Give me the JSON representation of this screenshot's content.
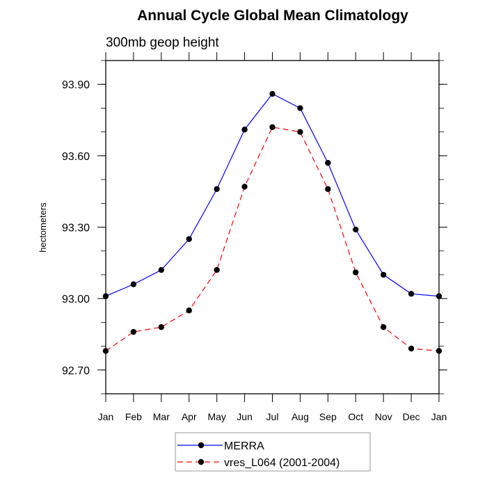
{
  "chart_data": {
    "type": "line",
    "title": "Annual Cycle Global Mean Climatology",
    "subtitle": "300mb geop height",
    "xlabel": "",
    "ylabel": "hectometers",
    "categories": [
      "Jan",
      "Feb",
      "Mar",
      "Apr",
      "May",
      "Jun",
      "Jul",
      "Aug",
      "Sep",
      "Oct",
      "Nov",
      "Dec",
      "Jan"
    ],
    "ylim": [
      92.6,
      94.0
    ],
    "yticks": [
      92.7,
      93.0,
      93.3,
      93.6,
      93.9
    ],
    "ytick_labels": [
      "92.70",
      "93.00",
      "93.30",
      "93.60",
      "93.90"
    ],
    "yminor_step": 0.1,
    "grid": false,
    "legend_position": "bottom-center",
    "series": [
      {
        "name": "MERRA",
        "color": "#0000ff",
        "line_style": "solid",
        "marker": "filled-circle",
        "values": [
          93.01,
          93.06,
          93.12,
          93.25,
          93.46,
          93.71,
          93.86,
          93.8,
          93.57,
          93.29,
          93.1,
          93.02,
          93.01
        ]
      },
      {
        "name": "vres_L064 (2001-2004)",
        "color": "#ff0000",
        "line_style": "dashed",
        "marker": "filled-circle",
        "values": [
          92.78,
          92.86,
          92.88,
          92.95,
          93.12,
          93.47,
          93.72,
          93.7,
          93.46,
          93.11,
          92.88,
          92.79,
          92.78
        ]
      }
    ]
  }
}
